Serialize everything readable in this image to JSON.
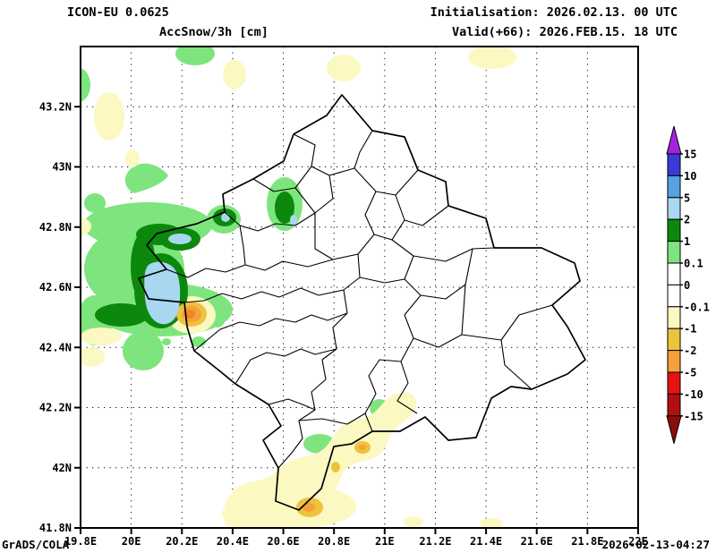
{
  "header": {
    "model": "ICON-EU 0.0625",
    "variable": "AccSnow/3h [cm]",
    "init": "Initialisation: 2026.02.13. 00 UTC",
    "valid": "Valid(+66): 2026.FEB.15. 18 UTC"
  },
  "footer": {
    "credit": "GrADS/COLA",
    "timestamp": "2026-02-13-04:27"
  },
  "axes": {
    "x": {
      "unit": "degrees east",
      "ticks": [
        {
          "label": "19.8E",
          "value": 19.8
        },
        {
          "label": "20E",
          "value": 20.0
        },
        {
          "label": "20.2E",
          "value": 20.2
        },
        {
          "label": "20.4E",
          "value": 20.4
        },
        {
          "label": "20.6E",
          "value": 20.6
        },
        {
          "label": "20.8E",
          "value": 20.8
        },
        {
          "label": "21E",
          "value": 21.0
        },
        {
          "label": "21.2E",
          "value": 21.2
        },
        {
          "label": "21.4E",
          "value": 21.4
        },
        {
          "label": "21.6E",
          "value": 21.6
        },
        {
          "label": "21.8E",
          "value": 21.8
        },
        {
          "label": "22E",
          "value": 22.0
        }
      ]
    },
    "y": {
      "unit": "degrees north",
      "ticks": [
        {
          "label": "43.2N",
          "value": 43.2
        },
        {
          "label": "43N",
          "value": 43.0
        },
        {
          "label": "42.8N",
          "value": 42.8
        },
        {
          "label": "42.6N",
          "value": 42.6
        },
        {
          "label": "42.4N",
          "value": 42.4
        },
        {
          "label": "42.2N",
          "value": 42.2
        },
        {
          "label": "42N",
          "value": 42.0
        },
        {
          "label": "41.8N",
          "value": 41.8
        }
      ]
    }
  },
  "colorbar": {
    "levels": [
      "15",
      "10",
      "5",
      "2",
      "1",
      "0.1",
      "0",
      "-0.1",
      "-1",
      "-2",
      "-5",
      "-10",
      "-15"
    ],
    "segment_colors": [
      "#3a3ad9",
      "#55a1e2",
      "#a8d7f0",
      "#0c880c",
      "#7ee57e",
      "#ffffff",
      "#ffffff",
      "#fbf8c2",
      "#eec33c",
      "#f5a03c",
      "#e51212",
      "#b21010"
    ],
    "arrow_top_color": "#a522dd",
    "arrow_bottom_color": "#8b0d0d"
  },
  "chart_data": {
    "type": "heatmap",
    "subtype": "shaded-contour weather map",
    "title": "AccSnow/3h [cm]",
    "model": "ICON-EU 0.0625",
    "init_time": "2026.02.13. 00 UTC",
    "valid_time": "2026.FEB.15. 18 UTC (+66h)",
    "region": "Kosovo with municipal boundaries",
    "xlabel": "Longitude (E)",
    "ylabel": "Latitude (N)",
    "xlim": [
      19.8,
      22.0
    ],
    "ylim": [
      41.8,
      43.4
    ],
    "grid": "dotted graticule every 0.2 degrees",
    "legend_position": "right colorbar with arrows, levels in cm",
    "levels_cm": [
      -15,
      -10,
      -5,
      -2,
      -1,
      -0.1,
      0,
      0.1,
      1,
      2,
      5,
      10,
      15
    ],
    "features": [
      {
        "band_cm": "2 to 5",
        "lon": 20.12,
        "lat": 42.58,
        "desc": "large light-blue maximum core on Albania/Kosovo border, ringed by dark green 1-2 cm"
      },
      {
        "band_cm": "2 to 5",
        "lon": 20.19,
        "lat": 42.76,
        "desc": "oval light-blue core inside dark-green ring"
      },
      {
        "band_cm": "2 to 5",
        "lon": 20.37,
        "lat": 42.83,
        "desc": "small blue spot at NW border corner"
      },
      {
        "band_cm": "2 to 5",
        "lon": 20.61,
        "lat": 42.88,
        "desc": "small blue spot in dark-green patch near Istog"
      },
      {
        "band_cm": "0.1 to 1",
        "lon": 20.2,
        "lat": 42.7,
        "desc": "broad light-green snowfall area over western Kosovo / Albanian Alps, patches north to 43.3N"
      },
      {
        "band_cm": "-2 to -5",
        "lon": 20.24,
        "lat": 42.51,
        "desc": "orange melt spot with gold ring just east of border"
      },
      {
        "band_cm": "-0.1 to -1",
        "lon": 20.9,
        "lat": 42.05,
        "desc": "pale-yellow melt band running SW-NE across southern Kosovo"
      },
      {
        "band_cm": "-1 to -2",
        "lon": 20.7,
        "lat": 41.87,
        "desc": "gold melt spot near Dragash"
      },
      {
        "band_cm": "-1 to -2",
        "lon": 20.91,
        "lat": 42.07,
        "desc": "small gold melt spot"
      },
      {
        "band_cm": "0.1 to 1",
        "lon": 20.74,
        "lat": 42.08,
        "desc": "green patch near Prizren"
      },
      {
        "band_cm": "0.1 to 1",
        "lon": 20.98,
        "lat": 42.2,
        "desc": "small green patch on southern border"
      }
    ]
  }
}
